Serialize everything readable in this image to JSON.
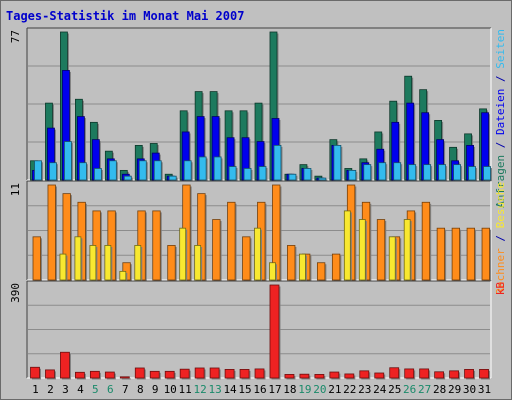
{
  "chart_data": {
    "type": "bar",
    "title": "Tages-Statistik im Monat Mai 2007",
    "colors": {
      "background": "#c0c0c0",
      "title": "#0000cc",
      "anfragen": "#1d7a5e",
      "dateien": "#0000ee",
      "seiten": "#33bbee",
      "besuche": "#f8e830",
      "rechner": "#ff8c1a",
      "kb": "#ee2222",
      "weekend_label": "#1a8a6a"
    },
    "categories": [
      "1",
      "2",
      "3",
      "4",
      "5",
      "6",
      "7",
      "8",
      "9",
      "10",
      "11",
      "12",
      "13",
      "14",
      "15",
      "16",
      "17",
      "18",
      "19",
      "20",
      "21",
      "22",
      "23",
      "24",
      "25",
      "26",
      "27",
      "28",
      "29",
      "30",
      "31"
    ],
    "weekend_days": [
      "5",
      "6",
      "12",
      "13",
      "19",
      "20",
      "26",
      "27"
    ],
    "panels": [
      {
        "id": "top",
        "ymax": 77,
        "ymax_label": "77",
        "legend": [
          {
            "text": "Anfragen",
            "series": "anfragen"
          },
          {
            "text": " / ",
            "series": "sep"
          },
          {
            "text": "Dateien",
            "series": "dateien"
          },
          {
            "text": " / ",
            "series": "sep"
          },
          {
            "text": "Seiten",
            "series": "seiten"
          }
        ],
        "series": [
          {
            "name": "Anfragen",
            "key": "anfragen",
            "values": [
              10,
              40,
              77,
              42,
              30,
              15,
              5,
              18,
              19,
              3,
              36,
              46,
              46,
              36,
              36,
              40,
              77,
              3,
              8,
              2,
              21,
              6,
              11,
              25,
              41,
              54,
              47,
              31,
              17,
              24,
              37
            ]
          },
          {
            "name": "Dateien",
            "key": "dateien",
            "values": [
              5,
              27,
              57,
              33,
              21,
              11,
              3,
              11,
              14,
              2,
              25,
              33,
              33,
              22,
              22,
              20,
              32,
              3,
              6,
              1,
              18,
              5,
              9,
              16,
              30,
              40,
              35,
              21,
              10,
              18,
              35
            ]
          },
          {
            "name": "Seiten",
            "key": "seiten",
            "values": [
              10,
              9,
              20,
              9,
              6,
              10,
              2,
              10,
              10,
              2,
              10,
              12,
              12,
              7,
              6,
              7,
              18,
              3,
              6,
              1,
              18,
              5,
              8,
              9,
              9,
              8,
              8,
              8,
              8,
              7,
              7
            ]
          }
        ]
      },
      {
        "id": "middle",
        "ymax": 11,
        "ymax_label": "11",
        "legend": [
          {
            "text": "Rechner",
            "series": "rechner"
          },
          {
            "text": " / ",
            "series": "sep"
          },
          {
            "text": "Besuche",
            "series": "besuche"
          }
        ],
        "series": [
          {
            "name": "Rechner",
            "key": "rechner",
            "values": [
              5,
              11,
              10,
              9,
              8,
              8,
              2,
              8,
              8,
              4,
              11,
              10,
              7,
              9,
              5,
              9,
              11,
              4,
              3,
              2,
              3,
              11,
              9,
              7,
              5,
              8,
              9,
              6,
              6,
              6,
              6
            ]
          },
          {
            "name": "Besuche",
            "key": "besuche",
            "values": [
              0,
              0,
              3,
              5,
              4,
              4,
              1,
              4,
              0,
              0,
              6,
              4,
              0,
              0,
              0,
              6,
              2,
              0,
              3,
              0,
              0,
              8,
              7,
              0,
              5,
              7,
              0,
              0,
              0,
              0,
              0
            ]
          }
        ]
      },
      {
        "id": "bottom",
        "ymax": 390,
        "ymax_label": "390",
        "legend": [
          {
            "text": "kB",
            "series": "kb"
          }
        ],
        "series": [
          {
            "name": "kB",
            "key": "kb",
            "values": [
              45,
              34,
              108,
              24,
              28,
              25,
              5,
              42,
              28,
              28,
              37,
              42,
              42,
              36,
              36,
              38,
              390,
              15,
              16,
              15,
              25,
              17,
              30,
              21,
              43,
              38,
              38,
              26,
              30,
              36,
              36
            ]
          }
        ]
      }
    ]
  }
}
